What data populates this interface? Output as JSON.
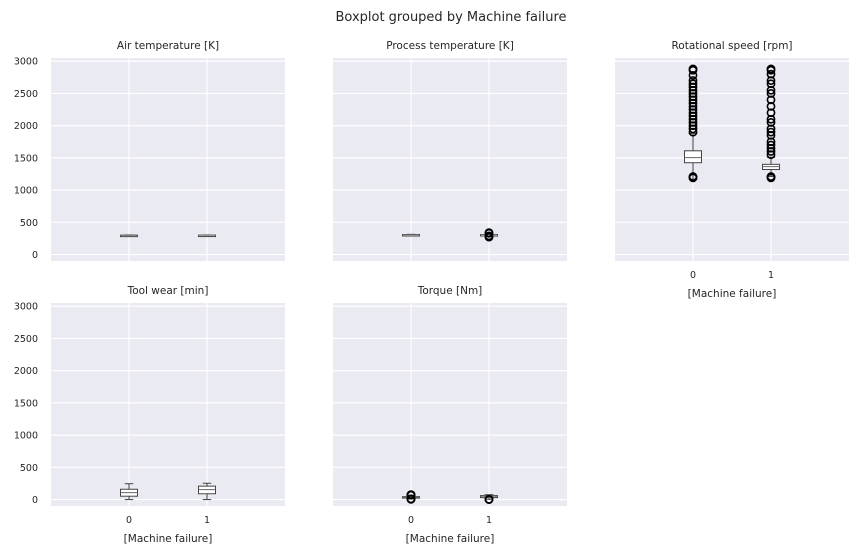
{
  "suptitle": "Boxplot grouped by Machine failure",
  "xlabel": "[Machine failure]",
  "chart_data": [
    {
      "type": "box",
      "title": "Air temperature [K]",
      "categories": [
        "0",
        "1"
      ],
      "ylim": [
        -100,
        3050
      ],
      "yticks": [
        0,
        500,
        1000,
        1500,
        2000,
        2500,
        3000
      ],
      "show_xticks": false,
      "xlabel": "",
      "boxes": [
        {
          "category": "0",
          "whislo": 296,
          "q1": 298.3,
          "med": 300.0,
          "q3": 301.5,
          "whishi": 304.5,
          "fliers": []
        },
        {
          "category": "1",
          "whislo": 297,
          "q1": 299.5,
          "med": 301.6,
          "q3": 302.5,
          "whishi": 304.4,
          "fliers": []
        }
      ]
    },
    {
      "type": "box",
      "title": "Process temperature [K]",
      "categories": [
        "0",
        "1"
      ],
      "ylim": [
        -100,
        3050
      ],
      "yticks": [],
      "show_xticks": false,
      "xlabel": "",
      "boxes": [
        {
          "category": "0",
          "whislo": 305.7,
          "q1": 308.8,
          "med": 310.0,
          "q3": 311.1,
          "whishi": 313.8,
          "fliers": []
        },
        {
          "category": "1",
          "whislo": 306,
          "q1": 309.5,
          "med": 310.5,
          "q3": 311.3,
          "whishi": 313.4,
          "fliers": [
            270,
            280,
            290,
            330,
            340
          ]
        }
      ]
    },
    {
      "type": "box",
      "title": "Rotational speed [rpm]",
      "categories": [
        "0",
        "1"
      ],
      "ylim": [
        -100,
        3050
      ],
      "yticks": [],
      "show_xticks": true,
      "xlabel": "[Machine failure]",
      "boxes": [
        {
          "category": "0",
          "whislo": 1168,
          "q1": 1425,
          "med": 1505,
          "q3": 1610,
          "whishi": 1880,
          "fliers": [
            1190,
            1200,
            1210,
            1900,
            1950,
            2000,
            2050,
            2100,
            2150,
            2200,
            2250,
            2300,
            2350,
            2400,
            2450,
            2500,
            2550,
            2600,
            2650,
            2700,
            2780,
            2860,
            2880
          ]
        },
        {
          "category": "1",
          "whislo": 1212,
          "q1": 1320,
          "med": 1365,
          "q3": 1400,
          "whishi": 1510,
          "fliers": [
            1190,
            1200,
            1210,
            1550,
            1600,
            1650,
            1700,
            1750,
            1850,
            1900,
            1950,
            2050,
            2100,
            2200,
            2300,
            2400,
            2500,
            2550,
            2650,
            2700,
            2800,
            2860,
            2880
          ]
        }
      ]
    },
    {
      "type": "box",
      "title": "Tool wear [min]",
      "categories": [
        "0",
        "1"
      ],
      "ylim": [
        -100,
        3050
      ],
      "yticks": [
        0,
        500,
        1000,
        1500,
        2000,
        2500,
        3000
      ],
      "show_xticks": true,
      "xlabel": "[Machine failure]",
      "boxes": [
        {
          "category": "0",
          "whislo": 0,
          "q1": 52,
          "med": 107,
          "q3": 160,
          "whishi": 246,
          "fliers": []
        },
        {
          "category": "1",
          "whislo": 0,
          "q1": 90,
          "med": 155,
          "q3": 208,
          "whishi": 253,
          "fliers": []
        }
      ]
    },
    {
      "type": "box",
      "title": "Torque [Nm]",
      "categories": [
        "0",
        "1"
      ],
      "ylim": [
        -100,
        3050
      ],
      "yticks": [],
      "show_xticks": true,
      "xlabel": "[Machine failure]",
      "boxes": [
        {
          "category": "0",
          "whislo": 12,
          "q1": 33,
          "med": 40,
          "q3": 46,
          "whishi": 66,
          "fliers": [
            4,
            6,
            8,
            10,
            68,
            70,
            72,
            74,
            76
          ]
        },
        {
          "category": "1",
          "whislo": 4,
          "q1": 30,
          "med": 52,
          "q3": 62,
          "whishi": 76,
          "fliers": [
            0,
            2,
            3
          ]
        }
      ]
    }
  ]
}
